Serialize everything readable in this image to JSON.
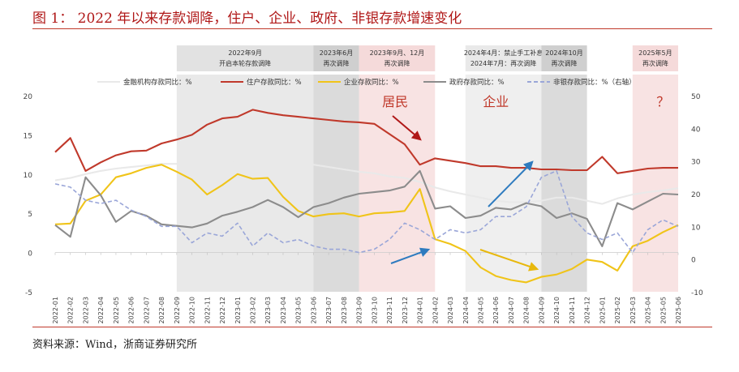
{
  "figure": {
    "title": "图 1： 2022 年以来存款调降，住户、企业、政府、非银存款增速变化",
    "source": "资料来源：Wind，浙商证券研究所"
  },
  "chart_data": {
    "type": "line",
    "categories": [
      "2022-01",
      "2022-02",
      "2022-03",
      "2022-04",
      "2022-05",
      "2022-06",
      "2022-07",
      "2022-08",
      "2022-09",
      "2022-10",
      "2022-11",
      "2022-12",
      "2023-01",
      "2023-02",
      "2023-03",
      "2023-04",
      "2023-05",
      "2023-06",
      "2023-07",
      "2023-08",
      "2023-09",
      "2023-10",
      "2023-11",
      "2023-12",
      "2024-01",
      "2024-02",
      "2024-03",
      "2024-04",
      "2024-05",
      "2024-06",
      "2024-07",
      "2024-08",
      "2024-09",
      "2024-10",
      "2024-11",
      "2024-12",
      "2025-01",
      "2025-02",
      "2025-03",
      "2025-04",
      "2025-05",
      "2025-06"
    ],
    "ylim_left": [
      -5,
      20
    ],
    "yticks_left": [
      -5,
      0,
      5,
      10,
      15,
      20
    ],
    "ylim_right": [
      -10,
      50
    ],
    "yticks_right": [
      -10,
      0,
      10,
      20,
      30,
      40,
      50
    ],
    "series": [
      {
        "name": "金融机构存款同比：%",
        "axis": "left",
        "color": "#e9e9e9",
        "values": [
          9.2,
          9.5,
          10.0,
          10.4,
          10.7,
          10.9,
          11.1,
          11.3,
          11.3,
          11.1,
          11.6,
          10.9,
          12.0,
          12.3,
          12.5,
          12.0,
          11.6,
          11.2,
          10.9,
          10.6,
          10.3,
          10.1,
          9.7,
          9.5,
          9.0,
          8.3,
          7.8,
          7.4,
          7.0,
          6.6,
          6.4,
          6.4,
          6.6,
          7.0,
          7.0,
          6.6,
          6.2,
          6.9,
          7.4,
          7.7,
          7.9,
          8.2
        ]
      },
      {
        "name": "住户存款同比：%",
        "axis": "left",
        "color": "#c0392b",
        "values": [
          12.8,
          14.6,
          10.4,
          11.5,
          12.4,
          12.9,
          13.0,
          13.9,
          14.4,
          15.0,
          16.3,
          17.1,
          17.3,
          18.2,
          17.8,
          17.5,
          17.3,
          17.1,
          16.9,
          16.7,
          16.6,
          16.4,
          15.1,
          13.8,
          11.2,
          12.0,
          11.7,
          11.4,
          11.0,
          11.0,
          10.8,
          10.8,
          10.6,
          10.6,
          10.5,
          10.5,
          12.2,
          10.1,
          10.4,
          10.7,
          10.8,
          10.8
        ]
      },
      {
        "name": "企业存款同比：%",
        "axis": "left",
        "color": "#f0c419",
        "values": [
          3.6,
          3.7,
          6.6,
          7.4,
          9.6,
          10.1,
          10.8,
          11.2,
          10.3,
          9.3,
          7.4,
          8.6,
          10.0,
          9.4,
          9.5,
          7.1,
          5.3,
          4.6,
          4.9,
          5.0,
          4.6,
          5.0,
          5.1,
          5.3,
          8.1,
          1.7,
          1.1,
          0.2,
          -1.9,
          -3.0,
          -3.5,
          -3.8,
          -3.1,
          -2.8,
          -2.1,
          -0.9,
          -1.2,
          -2.3,
          0.8,
          1.5,
          2.6,
          3.5
        ]
      },
      {
        "name": "政府存款同比：%",
        "axis": "left",
        "color": "#8c8c8c",
        "values": [
          3.5,
          2.0,
          9.6,
          7.3,
          3.9,
          5.3,
          4.7,
          3.6,
          3.4,
          3.2,
          3.7,
          4.7,
          5.2,
          5.8,
          6.7,
          5.8,
          4.5,
          5.8,
          6.3,
          7.0,
          7.5,
          7.7,
          7.9,
          8.4,
          10.4,
          5.6,
          5.9,
          4.4,
          4.7,
          5.7,
          5.5,
          6.3,
          5.9,
          4.4,
          5.0,
          4.3,
          0.8,
          6.3,
          5.5,
          6.5,
          7.5,
          7.4
        ]
      },
      {
        "name": "非银存款同比：%（右轴）",
        "axis": "right",
        "color": "#9aa6d8",
        "dashed": true,
        "values": [
          23,
          22,
          18,
          17,
          18,
          15,
          13,
          10,
          10,
          5,
          8,
          7,
          11,
          4,
          8,
          5,
          6,
          4,
          3,
          3,
          2,
          3,
          6,
          11,
          9,
          6,
          9,
          8,
          9,
          13,
          13,
          16,
          25,
          27,
          13,
          8,
          6,
          8,
          2,
          9,
          12,
          10
        ]
      }
    ],
    "periods": [
      {
        "start": "2022-09",
        "end": "2023-06",
        "color": "#e2e2e2",
        "label_lines": [
          "2022年9月",
          "开启本轮存款调降"
        ]
      },
      {
        "start": "2023-06",
        "end": "2023-09",
        "color": "#cfcfcf",
        "label_lines": [
          "2023年6月",
          "再次调降"
        ]
      },
      {
        "start": "2023-09",
        "end": "2024-02",
        "color": "#f5dada",
        "label_lines": [
          "2023年9月、12月",
          "再次调降"
        ]
      },
      {
        "start": "2024-04",
        "end": "2024-09",
        "color": "#e9e9e9",
        "label_lines": [
          "2024年4月：禁止手工补息",
          "2024年7月：再次调降"
        ]
      },
      {
        "start": "2024-09",
        "end": "2024-12",
        "color": "#cfcfcf",
        "label_lines": [
          "2024年10月",
          "再次调降"
        ]
      },
      {
        "start": "2025-03",
        "end": "2025-06",
        "color": "#f5dada",
        "label_lines": [
          "2025年5月",
          "再次调降"
        ]
      }
    ],
    "annotations": {
      "big_labels": [
        "居民",
        "企业",
        "？"
      ],
      "arrows_color_red": "#b01818",
      "arrows_color_blue": "#2e7bbf",
      "arrows_color_yellow": "#e8b80c"
    },
    "grid": false,
    "legend_position": "top"
  }
}
